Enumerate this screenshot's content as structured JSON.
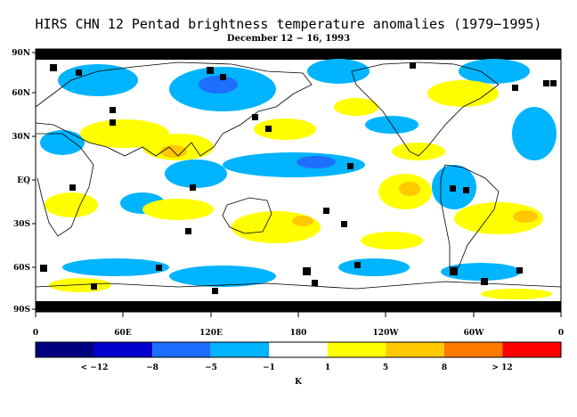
{
  "title": "HIRS CHN 12 Pentad brightness temperature anomalies (1979−1995)",
  "subtitle": "December 12 − 16, 1993",
  "map": {
    "lat_labels": [
      "90N",
      "60N",
      "30N",
      "EQ",
      "30S",
      "60S",
      "90S"
    ],
    "lon_labels": [
      "0",
      "60E",
      "120E",
      "180",
      "120W",
      "60W",
      "0"
    ]
  },
  "legend": {
    "unit": "K",
    "bins": [
      {
        "color": "#000080"
      },
      {
        "color": "#0000cc"
      },
      {
        "color": "#1e6eff"
      },
      {
        "color": "#00b4ff"
      },
      {
        "color": "#ffffff"
      },
      {
        "color": "#ffff00"
      },
      {
        "color": "#ffc800"
      },
      {
        "color": "#ff7800"
      },
      {
        "color": "#ff0000"
      }
    ],
    "tick_labels": [
      "< −12",
      "−8",
      "−5",
      "−1",
      "1",
      "5",
      "8",
      "> 12"
    ]
  }
}
